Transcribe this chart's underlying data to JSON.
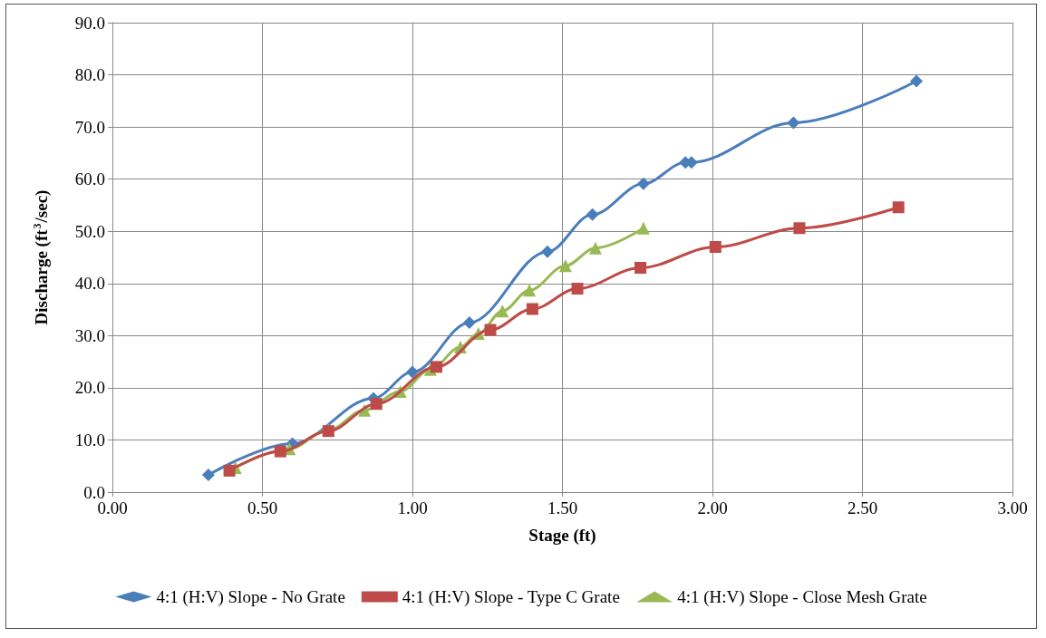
{
  "chart_data": {
    "type": "line",
    "xlabel": "Stage (ft)",
    "ylabel": "Discharge (ft$^{3}$/sec)",
    "xlim": [
      0,
      3
    ],
    "xticks": [
      {
        "value": 0,
        "label": "0.00"
      },
      {
        "value": 0.5,
        "label": "0.50"
      },
      {
        "value": 1,
        "label": "1.00"
      },
      {
        "value": 1.5,
        "label": "1.50"
      },
      {
        "value": 2,
        "label": "2.00"
      },
      {
        "value": 2.5,
        "label": "2.50"
      },
      {
        "value": 3,
        "label": "3.00"
      }
    ],
    "ylim": [
      0,
      90
    ],
    "yticks": [
      {
        "value": 0,
        "label": "0.0"
      },
      {
        "value": 10,
        "label": "10.0"
      },
      {
        "value": 20,
        "label": "20.0"
      },
      {
        "value": 30,
        "label": "30.0"
      },
      {
        "value": 40,
        "label": "40.0"
      },
      {
        "value": 50,
        "label": "50.0"
      },
      {
        "value": 60,
        "label": "60.0"
      },
      {
        "value": 70,
        "label": "70.0"
      },
      {
        "value": 80,
        "label": "80.0"
      },
      {
        "value": 90,
        "label": "90.0"
      }
    ],
    "grid": true,
    "legend": "bottom",
    "line_style": "solid",
    "series": [
      {
        "name": "4:1 (H:V) Slope - No Grate",
        "color": "#4a7ebb",
        "marker": "diamond",
        "x": [
          0.32,
          0.6,
          0.87,
          1.0,
          1.19,
          1.45,
          1.6,
          1.77,
          1.91,
          1.93,
          2.27,
          2.68
        ],
        "values": [
          3.3,
          9.3,
          18.0,
          23.0,
          32.5,
          46.1,
          53.2,
          59.1,
          63.2,
          63.2,
          70.8,
          78.8
        ]
      },
      {
        "name": "4:1 (H:V) Slope - Type C Grate",
        "color": "#be4b48",
        "marker": "square",
        "x": [
          0.39,
          0.56,
          0.72,
          0.88,
          1.08,
          1.26,
          1.4,
          1.55,
          1.76,
          2.01,
          2.29,
          2.62
        ],
        "values": [
          4.1,
          7.8,
          11.7,
          16.9,
          24.0,
          31.1,
          35.1,
          39.0,
          43.0,
          47.0,
          50.6,
          54.6
        ]
      },
      {
        "name": "4:1 (H:V) Slope - Close Mesh Grate",
        "color": "#98b954",
        "marker": "triangle",
        "x": [
          0.41,
          0.59,
          0.72,
          0.84,
          0.96,
          1.06,
          1.16,
          1.22,
          1.3,
          1.39,
          1.51,
          1.61,
          1.77
        ],
        "values": [
          4.7,
          8.3,
          11.9,
          15.7,
          19.3,
          23.5,
          27.8,
          30.4,
          34.7,
          38.7,
          43.4,
          46.8,
          50.6
        ]
      }
    ]
  }
}
